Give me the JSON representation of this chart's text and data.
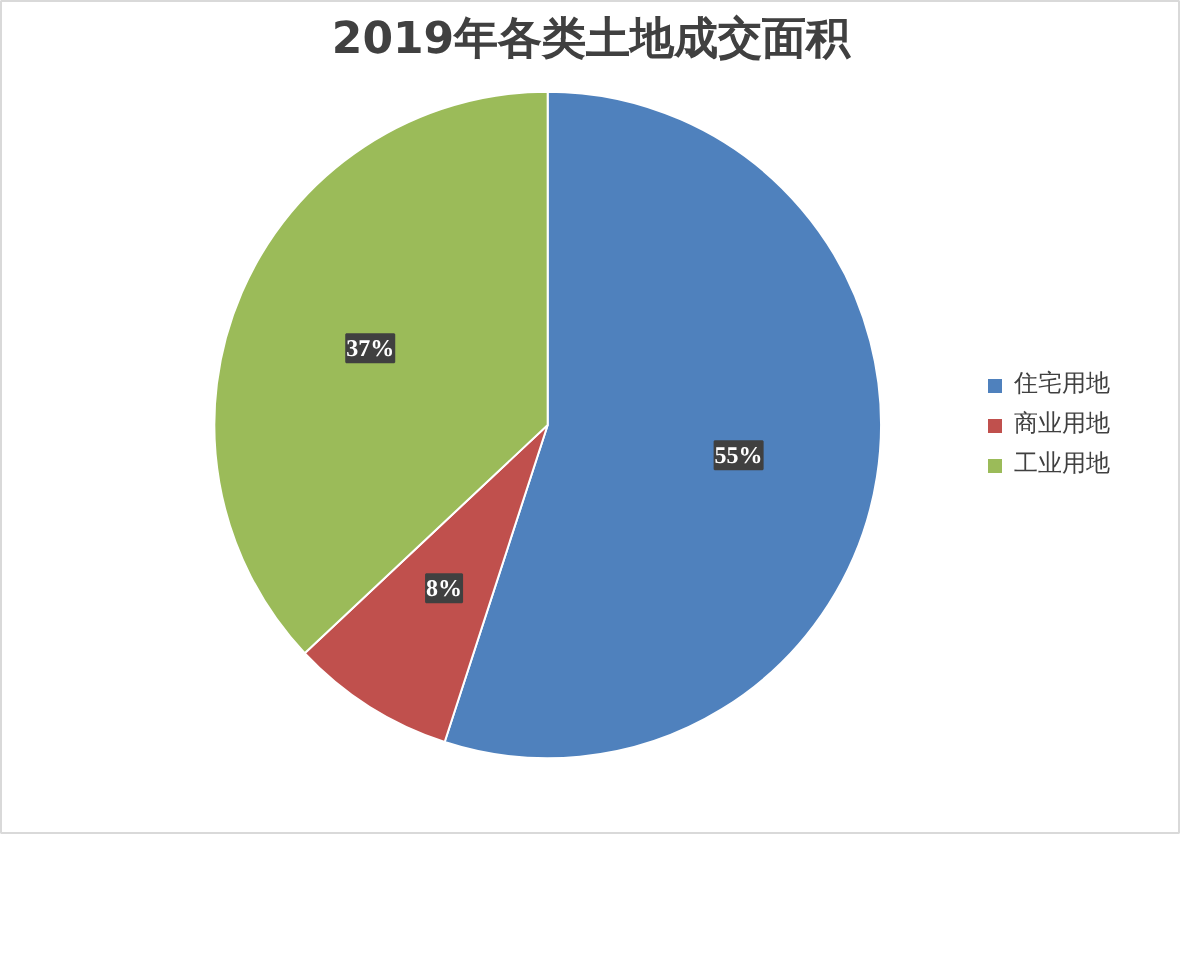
{
  "chart_data": {
    "type": "pie",
    "title": "2019年各类土地成交面积",
    "categories": [
      "住宅用地",
      "商业用地",
      "工业用地"
    ],
    "values": [
      55,
      8,
      37
    ],
    "colors": [
      "#4f81bd",
      "#c0504d",
      "#9bbb59"
    ],
    "value_labels": [
      "55%",
      "8%",
      "37%"
    ],
    "legend": "right"
  }
}
